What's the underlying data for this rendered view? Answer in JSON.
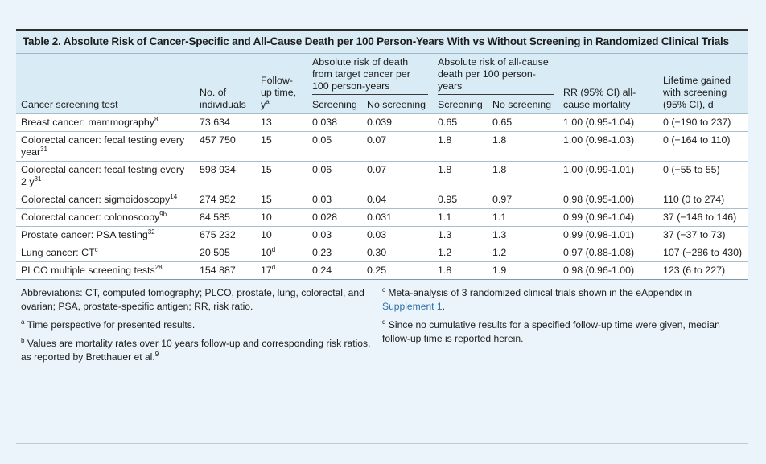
{
  "table": {
    "caption": "Table 2. Absolute Risk of Cancer-Specific and All-Cause Death per 100 Person-Years With vs Without Screening in Randomized Clinical Trials",
    "headers": {
      "test": "Cancer screening test",
      "individuals": "No. of individuals",
      "followup": "Follow-up time, y",
      "followup_sup": "a",
      "group_target": "Absolute risk of death from target cancer per 100 person-years",
      "group_allcause": "Absolute risk of all-cause death per 100 person-years",
      "screening": "Screening",
      "no_screening": "No screening",
      "rr": "RR (95% CI) all-cause mortality",
      "lifetime": "Lifetime gained with screening (95% CI), d"
    },
    "rows": [
      {
        "test": "Breast cancer: mammography",
        "sup": "8",
        "n": "73 634",
        "fu": "13",
        "fu_sup": "",
        "ts": "0.038",
        "tn": "0.039",
        "as": "0.65",
        "an": "0.65",
        "rr": "1.00 (0.95-1.04)",
        "life": "0 (−190 to 237)"
      },
      {
        "test": "Colorectal cancer: fecal testing every year",
        "sup": "31",
        "n": "457 750",
        "fu": "15",
        "fu_sup": "",
        "ts": "0.05",
        "tn": "0.07",
        "as": "1.8",
        "an": "1.8",
        "rr": "1.00 (0.98-1.03)",
        "life": "0 (−164 to 110)"
      },
      {
        "test": "Colorectal cancer: fecal testing every 2 y",
        "sup": "31",
        "n": "598 934",
        "fu": "15",
        "fu_sup": "",
        "ts": "0.06",
        "tn": "0.07",
        "as": "1.8",
        "an": "1.8",
        "rr": "1.00 (0.99-1.01)",
        "life": "0 (−55 to 55)"
      },
      {
        "test": "Colorectal cancer: sigmoidoscopy",
        "sup": "14",
        "n": "274 952",
        "fu": "15",
        "fu_sup": "",
        "ts": "0.03",
        "tn": "0.04",
        "as": "0.95",
        "an": "0.97",
        "rr": "0.98 (0.95-1.00)",
        "life": "110 (0 to 274)"
      },
      {
        "test": "Colorectal cancer: colonoscopy",
        "sup": "9b",
        "n": "84 585",
        "fu": "10",
        "fu_sup": "",
        "ts": "0.028",
        "tn": "0.031",
        "as": "1.1",
        "an": "1.1",
        "rr": "0.99 (0.96-1.04)",
        "life": "37 (−146 to 146)"
      },
      {
        "test": "Prostate cancer: PSA testing",
        "sup": "32",
        "n": "675 232",
        "fu": "10",
        "fu_sup": "",
        "ts": "0.03",
        "tn": "0.03",
        "as": "1.3",
        "an": "1.3",
        "rr": "0.99 (0.98-1.01)",
        "life": "37 (−37 to 73)"
      },
      {
        "test": "Lung cancer: CT",
        "sup": "c",
        "n": "20 505",
        "fu": "10",
        "fu_sup": "d",
        "ts": "0.23",
        "tn": "0.30",
        "as": "1.2",
        "an": "1.2",
        "rr": "0.97 (0.88-1.08)",
        "life": "107 (−286 to 430)"
      },
      {
        "test": "PLCO multiple screening tests",
        "sup": "28",
        "n": "154 887",
        "fu": "17",
        "fu_sup": "d",
        "ts": "0.24",
        "tn": "0.25",
        "as": "1.8",
        "an": "1.9",
        "rr": "0.98 (0.96-1.00)",
        "life": "123 (6 to 227)"
      }
    ]
  },
  "notes": {
    "abbreviations": "Abbreviations: CT, computed tomography; PLCO, prostate, lung, colorectal, and ovarian; PSA, prostate-specific antigen; RR, risk ratio.",
    "a_mark": "a",
    "a_text": "Time perspective for presented results.",
    "b_mark": "b",
    "b_text": "Values are mortality rates over 10 years follow-up and corresponding risk ratios, as reported by Bretthauer et al.",
    "b_ref": "9",
    "c_mark": "c",
    "c_text": "Meta-analysis of 3 randomized clinical trials shown in the eAppendix in",
    "c_link": "Supplement 1",
    "c_end": ".",
    "d_mark": "d",
    "d_text": "Since no cumulative results for a specified follow-up time were given, median follow-up time is reported herein."
  }
}
